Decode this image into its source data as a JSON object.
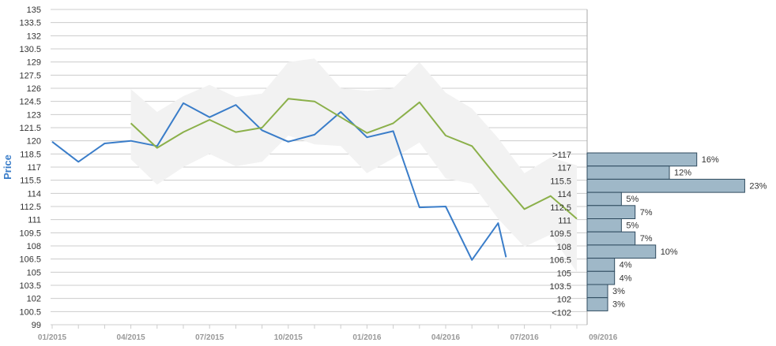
{
  "chart_data": {
    "type": "line",
    "ylabel": "Price",
    "ylim": [
      99,
      135
    ],
    "yticks": [
      "135",
      "133.5",
      "132",
      "130.5",
      "129",
      "127.5",
      "126",
      "124.5",
      "123",
      "121.5",
      "120",
      "118.5",
      "117",
      "115.5",
      "114",
      "112.5",
      "111",
      "109.5",
      "108",
      "106.5",
      "105",
      "103.5",
      "102",
      "100.5",
      "99"
    ],
    "xlabels": [
      "01/2015",
      "04/2015",
      "07/2015",
      "10/2015",
      "01/2016",
      "04/2016",
      "07/2016",
      "09/2016"
    ],
    "series": [
      {
        "color": "#3a7dc9",
        "x": [
          "01/2015",
          "02/2015",
          "03/2015",
          "04/2015",
          "05/2015",
          "06/2015",
          "07/2015",
          "08/2015",
          "09/2015",
          "10/2015",
          "11/2015",
          "12/2015",
          "01/2016",
          "02/2016",
          "03/2016",
          "04/2016",
          "05/2016",
          "06/2016",
          "06/2016"
        ],
        "values": [
          119.9,
          117.6,
          119.7,
          120.0,
          119.4,
          124.3,
          122.7,
          124.1,
          121.2,
          119.9,
          120.7,
          123.3,
          120.4,
          121.1,
          112.4,
          112.5,
          106.4,
          110.6,
          106.7
        ]
      },
      {
        "color": "#8bb04a",
        "x": [
          "04/2015",
          "05/2015",
          "06/2015",
          "07/2015",
          "08/2015",
          "09/2015",
          "10/2015",
          "11/2015",
          "12/2015",
          "01/2016",
          "02/2016",
          "03/2016",
          "04/2016",
          "05/2016",
          "06/2016",
          "07/2016",
          "08/2016",
          "09/2016"
        ],
        "values": [
          122.0,
          119.2,
          121.0,
          122.4,
          121.0,
          121.5,
          124.8,
          124.5,
          122.7,
          120.9,
          122.0,
          124.4,
          120.6,
          119.4,
          115.7,
          112.2,
          113.7,
          111.1
        ]
      }
    ],
    "band": {
      "color": "#f2f2f2",
      "x": [
        "04/2015",
        "05/2015",
        "06/2015",
        "07/2015",
        "08/2015",
        "09/2015",
        "10/2015",
        "11/2015",
        "12/2015",
        "01/2016",
        "02/2016",
        "03/2016",
        "04/2016",
        "05/2016",
        "06/2016",
        "07/2016",
        "08/2016",
        "09/2016"
      ],
      "upper": [
        125.9,
        123.3,
        125.1,
        126.4,
        125.0,
        125.4,
        129.0,
        129.4,
        126.0,
        125.7,
        126.0,
        129.0,
        125.5,
        123.7,
        120.3,
        116.3,
        118.1,
        117.2
      ],
      "lower": [
        117.9,
        115.0,
        117.0,
        118.5,
        117.1,
        117.6,
        120.6,
        119.6,
        119.4,
        116.3,
        118.0,
        119.8,
        115.7,
        115.1,
        111.1,
        107.9,
        109.3,
        105.0
      ]
    },
    "histogram": {
      "color": "#9fb8c8",
      "bins": [
        {
          "label": ">117",
          "pct": "16%",
          "value": 16
        },
        {
          "label": "117",
          "pct": "12%",
          "value": 12
        },
        {
          "label": "115.5",
          "pct": "23%",
          "value": 23
        },
        {
          "label": "114",
          "pct": "5%",
          "value": 5
        },
        {
          "label": "112.5",
          "pct": "7%",
          "value": 7
        },
        {
          "label": "111",
          "pct": "5%",
          "value": 5
        },
        {
          "label": "109.5",
          "pct": "7%",
          "value": 7
        },
        {
          "label": "108",
          "pct": "10%",
          "value": 10
        },
        {
          "label": "106.5",
          "pct": "4%",
          "value": 4
        },
        {
          "label": "105",
          "pct": "4%",
          "value": 4
        },
        {
          "label": "103.5",
          "pct": "3%",
          "value": 3
        },
        {
          "label": "102",
          "pct": "3%",
          "value": 3
        },
        {
          "label": "<102",
          "pct": "",
          "value": 0
        }
      ]
    }
  }
}
